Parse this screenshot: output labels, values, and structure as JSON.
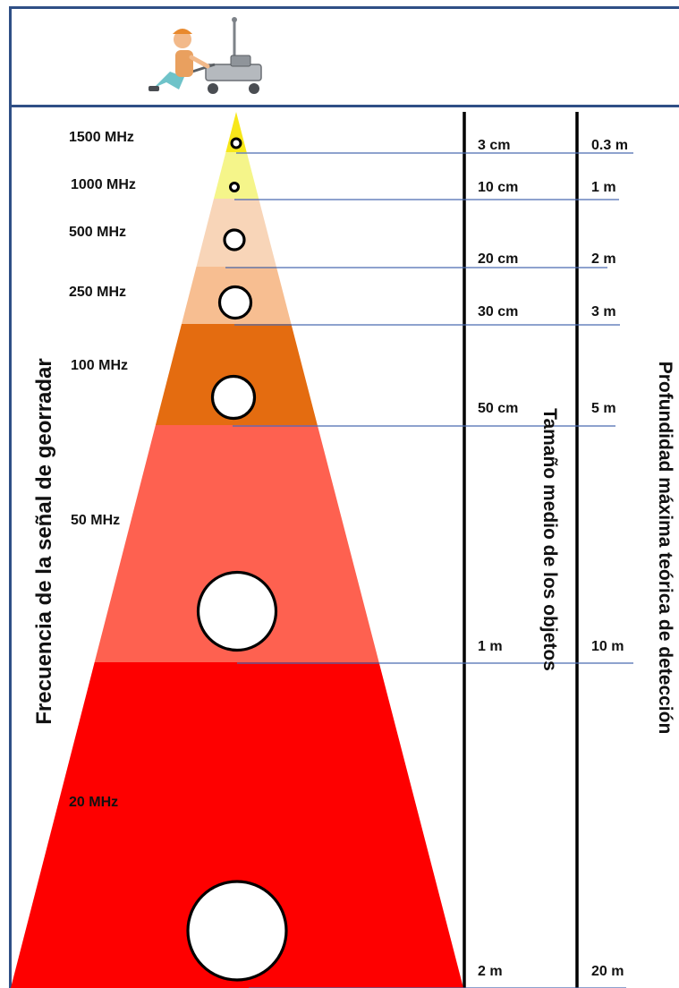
{
  "header": {
    "illustration": "person-pushing-gpr-cart-icon"
  },
  "axis_titles": {
    "frequency": "Frecuencia de la señal de georradar",
    "object_size": "Tamaño medio de los objetos",
    "max_depth": "Profundidad máxima teórica de detección"
  },
  "bands": [
    {
      "frequency": "1500 MHz",
      "object_size": "3 cm",
      "max_depth": "0.3 m",
      "color": "#f7e71a"
    },
    {
      "frequency": "1000 MHz",
      "object_size": "10 cm",
      "max_depth": "1 m",
      "color": "#f5f58a"
    },
    {
      "frequency": "500 MHz",
      "object_size": "20 cm",
      "max_depth": "2 m",
      "color": "#f8d5b8"
    },
    {
      "frequency": "250 MHz",
      "object_size": "30 cm",
      "max_depth": "3 m",
      "color": "#f7be91"
    },
    {
      "frequency": "100 MHz",
      "object_size": "50 cm",
      "max_depth": "5 m",
      "color": "#e46c10"
    },
    {
      "frequency": "50 MHz",
      "object_size": "1 m",
      "max_depth": "10 m",
      "color": "#fe6150"
    },
    {
      "frequency": "20 MHz",
      "object_size": "2 m",
      "max_depth": "20 m",
      "color": "#fe0000"
    }
  ],
  "colors": {
    "frame": "#2f4f86",
    "guide_line": "#4a6bb0",
    "column_divider": "#000000",
    "circle_stroke": "#000000"
  }
}
